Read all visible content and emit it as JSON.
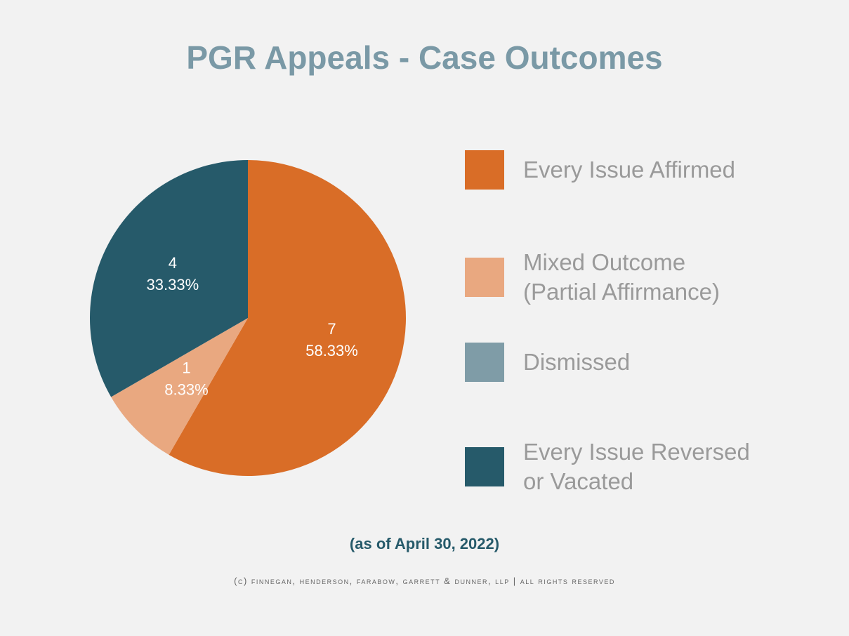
{
  "chart_data": {
    "type": "pie",
    "title": "PGR Appeals - Case Outcomes",
    "categories": [
      "Every Issue Affirmed",
      "Mixed Outcome (Partial Affirmance)",
      "Dismissed",
      "Every Issue Reversed or Vacated"
    ],
    "values": [
      7,
      1,
      0,
      4
    ],
    "percentages": [
      58.33,
      8.33,
      0,
      33.33
    ],
    "percentage_labels": [
      "58.33%",
      "8.33%",
      null,
      "33.33%"
    ],
    "colors": [
      "#d96d27",
      "#e9a880",
      "#7f9ca7",
      "#265a6a"
    ],
    "legend": "right",
    "subtitle": "(as of April 30, 2022)",
    "footer": "(c) finnegan, henderson, farabow, garrett & dunner, llp | all rights reserved"
  }
}
